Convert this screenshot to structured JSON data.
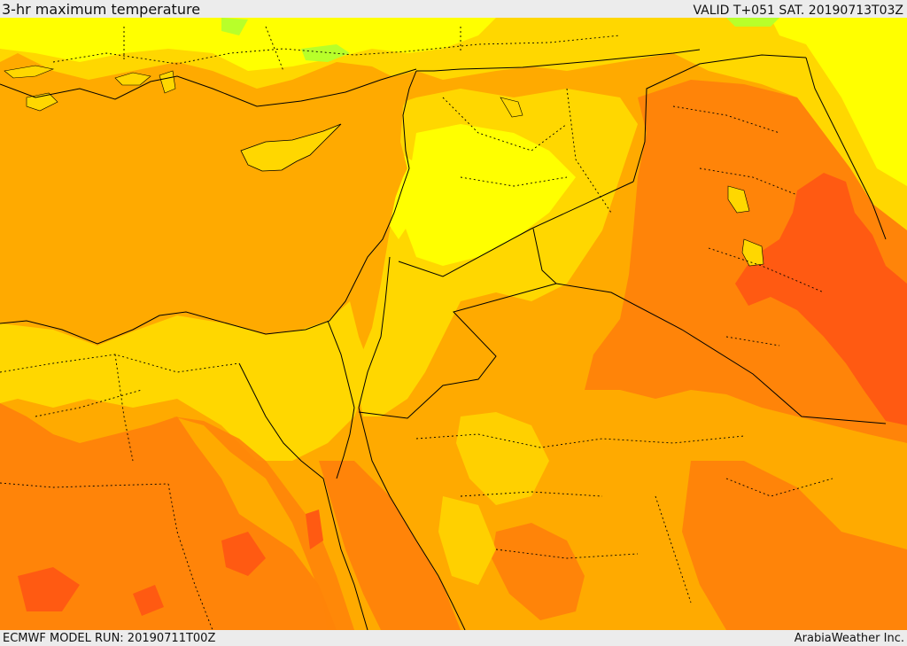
{
  "header": {
    "title": "3-hr maximum temperature",
    "valid": "VALID T+051 SAT. 20190713T03Z"
  },
  "footer": {
    "model_run": "ECMWF MODEL RUN: 20190711T00Z",
    "credit": "ArabiaWeather Inc."
  },
  "colors": {
    "very_hot": "#ff5a12",
    "hot": "#ff8409",
    "warm": "#ffaa00",
    "mild": "#ffd700",
    "cool": "#ffff00",
    "cold": "#b8ff2a",
    "border": "#000000"
  }
}
